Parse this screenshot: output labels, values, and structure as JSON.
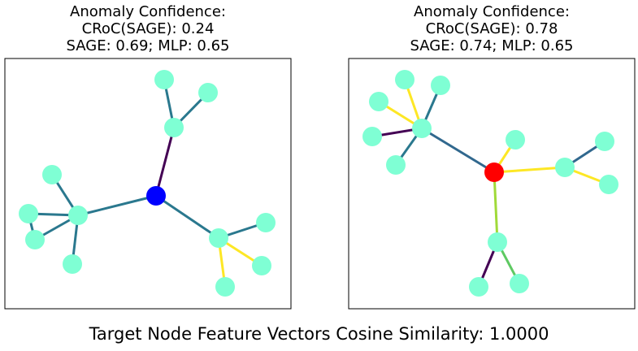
{
  "panels": [
    {
      "title_lines": [
        "Anomaly Confidence:",
        "CRoC(SAGE): 0.24",
        "SAGE: 0.69; MLP: 0.65"
      ],
      "center_node_color": "#0000ff",
      "node_color": "#7fffd4",
      "edge_colors": [
        "#440154",
        "#2a788e",
        "#fde725"
      ]
    },
    {
      "title_lines": [
        "Anomaly Confidence:",
        "CRoC(SAGE): 0.78",
        "SAGE: 0.74; MLP: 0.65"
      ],
      "center_node_color": "#ff0000",
      "node_color": "#7fffd4",
      "edge_colors": [
        "#440154",
        "#31688e",
        "#2a788e",
        "#5ec962",
        "#a0da39",
        "#fde725"
      ]
    }
  ],
  "footer": "Target Node Feature Vectors Cosine Similarity: 1.0000"
}
